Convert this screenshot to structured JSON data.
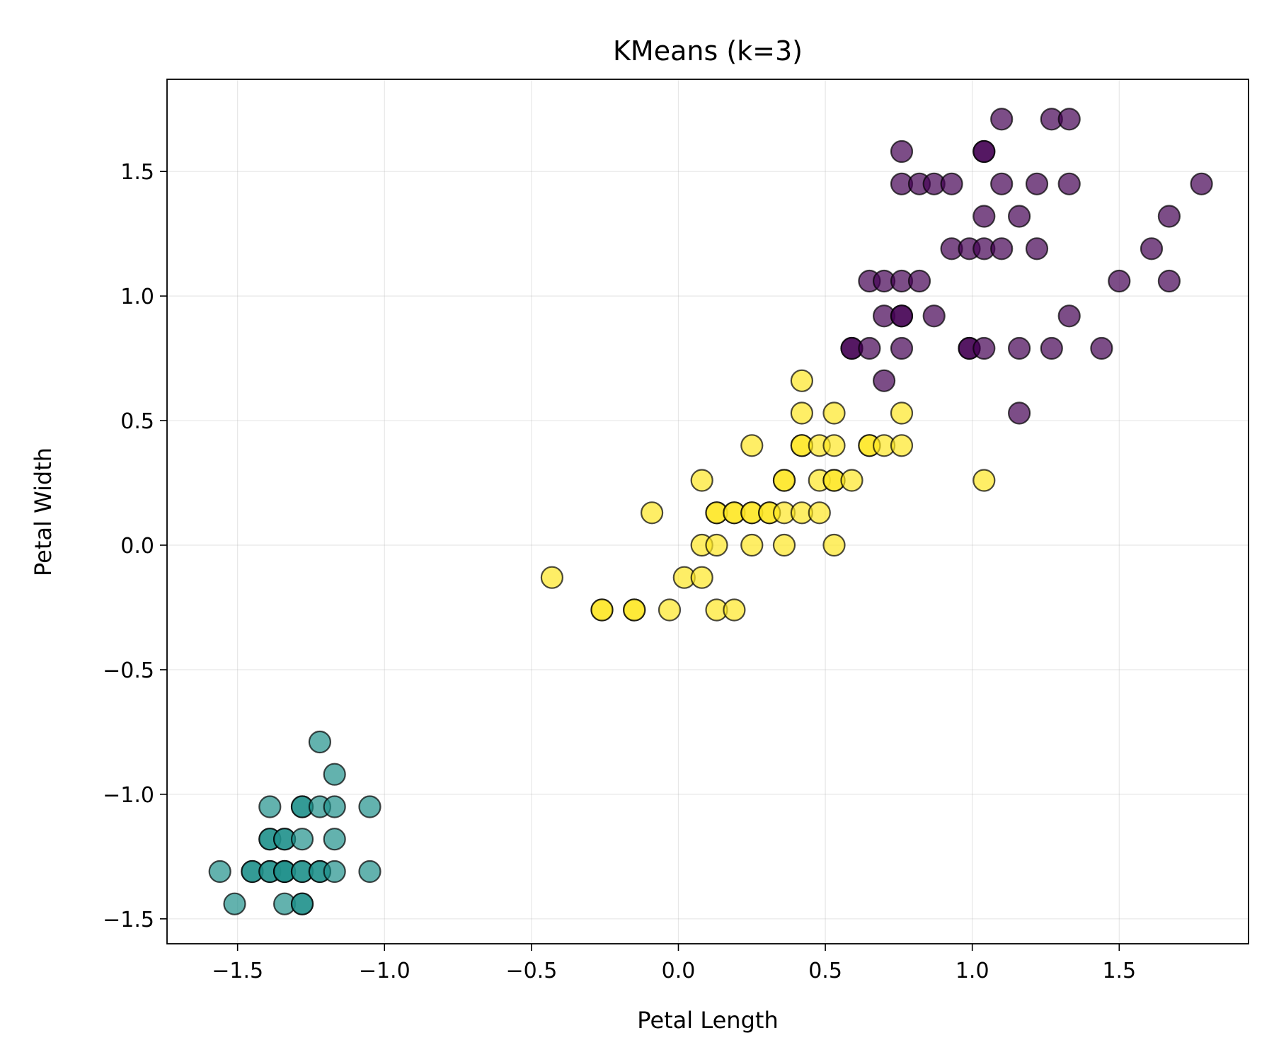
{
  "chart_data": {
    "type": "scatter",
    "title": "KMeans (k=3)",
    "xlabel": "Petal Length",
    "ylabel": "Petal Width",
    "xlim": [
      -1.74,
      1.94
    ],
    "ylim": [
      -1.6,
      1.87
    ],
    "x_ticks": [
      -1.5,
      -1.0,
      -0.5,
      0.0,
      0.5,
      1.0,
      1.5
    ],
    "y_ticks": [
      -1.5,
      -1.0,
      -0.5,
      0.0,
      0.5,
      1.0,
      1.5
    ],
    "x_tick_labels": [
      "−1.5",
      "−1.0",
      "−0.5",
      "0.0",
      "0.5",
      "1.0",
      "1.5"
    ],
    "y_tick_labels": [
      "−1.5",
      "−1.0",
      "−0.5",
      "0.0",
      "0.5",
      "1.0",
      "1.5"
    ],
    "grid": true,
    "legend": false,
    "marker_alpha": 0.7,
    "series": [
      {
        "color": "#440154",
        "points": [
          [
            1.1,
            1.71
          ],
          [
            1.27,
            1.71
          ],
          [
            1.33,
            1.71
          ],
          [
            0.76,
            1.58
          ],
          [
            1.04,
            1.58
          ],
          [
            1.04,
            1.58
          ],
          [
            0.76,
            1.45
          ],
          [
            0.82,
            1.45
          ],
          [
            0.87,
            1.45
          ],
          [
            0.93,
            1.45
          ],
          [
            1.1,
            1.45
          ],
          [
            1.22,
            1.45
          ],
          [
            1.33,
            1.45
          ],
          [
            1.78,
            1.45
          ],
          [
            1.04,
            1.32
          ],
          [
            1.16,
            1.32
          ],
          [
            1.67,
            1.32
          ],
          [
            0.93,
            1.19
          ],
          [
            0.99,
            1.19
          ],
          [
            1.04,
            1.19
          ],
          [
            1.1,
            1.19
          ],
          [
            1.22,
            1.19
          ],
          [
            1.61,
            1.19
          ],
          [
            0.65,
            1.06
          ],
          [
            0.7,
            1.06
          ],
          [
            0.76,
            1.06
          ],
          [
            0.82,
            1.06
          ],
          [
            1.5,
            1.06
          ],
          [
            1.67,
            1.06
          ],
          [
            0.7,
            0.92
          ],
          [
            0.76,
            0.92
          ],
          [
            0.76,
            0.92
          ],
          [
            0.87,
            0.92
          ],
          [
            1.33,
            0.92
          ],
          [
            0.59,
            0.79
          ],
          [
            0.59,
            0.79
          ],
          [
            0.65,
            0.79
          ],
          [
            0.76,
            0.79
          ],
          [
            0.99,
            0.79
          ],
          [
            0.99,
            0.79
          ],
          [
            1.04,
            0.79
          ],
          [
            1.16,
            0.79
          ],
          [
            1.27,
            0.79
          ],
          [
            1.44,
            0.79
          ],
          [
            0.7,
            0.66
          ],
          [
            1.16,
            0.53
          ]
        ]
      },
      {
        "color": "#21918c",
        "points": [
          [
            -1.22,
            -0.79
          ],
          [
            -1.17,
            -0.92
          ],
          [
            -1.39,
            -1.05
          ],
          [
            -1.28,
            -1.05
          ],
          [
            -1.28,
            -1.05
          ],
          [
            -1.22,
            -1.05
          ],
          [
            -1.17,
            -1.05
          ],
          [
            -1.05,
            -1.05
          ],
          [
            -1.39,
            -1.18
          ],
          [
            -1.39,
            -1.18
          ],
          [
            -1.34,
            -1.18
          ],
          [
            -1.34,
            -1.18
          ],
          [
            -1.28,
            -1.18
          ],
          [
            -1.17,
            -1.18
          ],
          [
            -1.56,
            -1.31
          ],
          [
            -1.45,
            -1.31
          ],
          [
            -1.45,
            -1.31
          ],
          [
            -1.39,
            -1.31
          ],
          [
            -1.39,
            -1.31
          ],
          [
            -1.34,
            -1.31
          ],
          [
            -1.34,
            -1.31
          ],
          [
            -1.34,
            -1.31
          ],
          [
            -1.28,
            -1.31
          ],
          [
            -1.28,
            -1.31
          ],
          [
            -1.22,
            -1.31
          ],
          [
            -1.22,
            -1.31
          ],
          [
            -1.17,
            -1.31
          ],
          [
            -1.05,
            -1.31
          ],
          [
            -1.51,
            -1.44
          ],
          [
            -1.34,
            -1.44
          ],
          [
            -1.28,
            -1.44
          ],
          [
            -1.28,
            -1.44
          ]
        ]
      },
      {
        "color": "#fde725",
        "points": [
          [
            0.42,
            0.66
          ],
          [
            0.42,
            0.53
          ],
          [
            0.53,
            0.53
          ],
          [
            0.76,
            0.53
          ],
          [
            0.25,
            0.4
          ],
          [
            0.42,
            0.4
          ],
          [
            0.42,
            0.4
          ],
          [
            0.48,
            0.4
          ],
          [
            0.53,
            0.4
          ],
          [
            0.65,
            0.4
          ],
          [
            0.65,
            0.4
          ],
          [
            0.7,
            0.4
          ],
          [
            0.76,
            0.4
          ],
          [
            0.08,
            0.26
          ],
          [
            0.36,
            0.26
          ],
          [
            0.36,
            0.26
          ],
          [
            0.48,
            0.26
          ],
          [
            0.53,
            0.26
          ],
          [
            0.53,
            0.26
          ],
          [
            0.59,
            0.26
          ],
          [
            1.04,
            0.26
          ],
          [
            -0.09,
            0.13
          ],
          [
            0.13,
            0.13
          ],
          [
            0.13,
            0.13
          ],
          [
            0.19,
            0.13
          ],
          [
            0.19,
            0.13
          ],
          [
            0.25,
            0.13
          ],
          [
            0.25,
            0.13
          ],
          [
            0.31,
            0.13
          ],
          [
            0.31,
            0.13
          ],
          [
            0.36,
            0.13
          ],
          [
            0.42,
            0.13
          ],
          [
            0.48,
            0.13
          ],
          [
            0.08,
            0.0
          ],
          [
            0.13,
            0.0
          ],
          [
            0.25,
            0.0
          ],
          [
            0.36,
            0.0
          ],
          [
            0.53,
            0.0
          ],
          [
            -0.43,
            -0.13
          ],
          [
            0.02,
            -0.13
          ],
          [
            0.08,
            -0.13
          ],
          [
            -0.26,
            -0.26
          ],
          [
            -0.26,
            -0.26
          ],
          [
            -0.15,
            -0.26
          ],
          [
            -0.15,
            -0.26
          ],
          [
            -0.03,
            -0.26
          ],
          [
            0.13,
            -0.26
          ],
          [
            0.19,
            -0.26
          ]
        ]
      }
    ]
  }
}
